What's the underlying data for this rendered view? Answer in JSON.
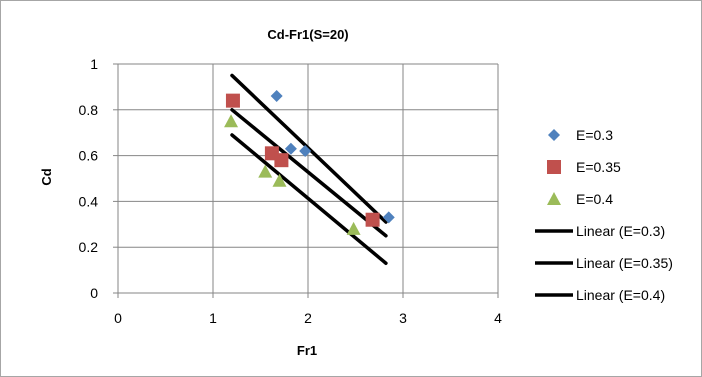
{
  "chart_data": {
    "type": "scatter",
    "title": "Cd-Fr1(S=20)",
    "xlabel": "Fr1",
    "ylabel": "Cd",
    "xlim": [
      0,
      4
    ],
    "ylim": [
      0,
      1
    ],
    "xticks": [
      0,
      1,
      2,
      3,
      4
    ],
    "yticks": [
      0,
      0.2,
      0.4,
      0.6,
      0.8,
      1
    ],
    "xtick_labels": [
      "0",
      "1",
      "2",
      "3",
      "4"
    ],
    "ytick_labels": [
      "0",
      "0.2",
      "0.4",
      "0.6",
      "0.8",
      "1"
    ],
    "grid": true,
    "legend_position": "right",
    "series": [
      {
        "name": "E=0.3",
        "marker": "diamond",
        "color": "#4f81bd",
        "points": [
          [
            1.67,
            0.86
          ],
          [
            1.82,
            0.63
          ],
          [
            1.97,
            0.62
          ],
          [
            2.85,
            0.33
          ]
        ]
      },
      {
        "name": "E=0.35",
        "marker": "square",
        "color": "#c0504d",
        "points": [
          [
            1.21,
            0.84
          ],
          [
            1.62,
            0.61
          ],
          [
            1.72,
            0.58
          ],
          [
            2.68,
            0.32
          ]
        ]
      },
      {
        "name": "E=0.4",
        "marker": "triangle",
        "color": "#9bbb59",
        "points": [
          [
            1.19,
            0.75
          ],
          [
            1.55,
            0.53
          ],
          [
            1.7,
            0.49
          ],
          [
            2.48,
            0.28
          ]
        ]
      }
    ],
    "trendlines": [
      {
        "name": "Linear (E=0.3)",
        "color": "#000000",
        "from": [
          1.2,
          0.95
        ],
        "to": [
          2.82,
          0.31
        ]
      },
      {
        "name": "Linear (E=0.35)",
        "color": "#000000",
        "from": [
          1.2,
          0.8
        ],
        "to": [
          2.82,
          0.25
        ]
      },
      {
        "name": "Linear (E=0.4)",
        "color": "#000000",
        "from": [
          1.2,
          0.69
        ],
        "to": [
          2.82,
          0.13
        ]
      }
    ]
  }
}
